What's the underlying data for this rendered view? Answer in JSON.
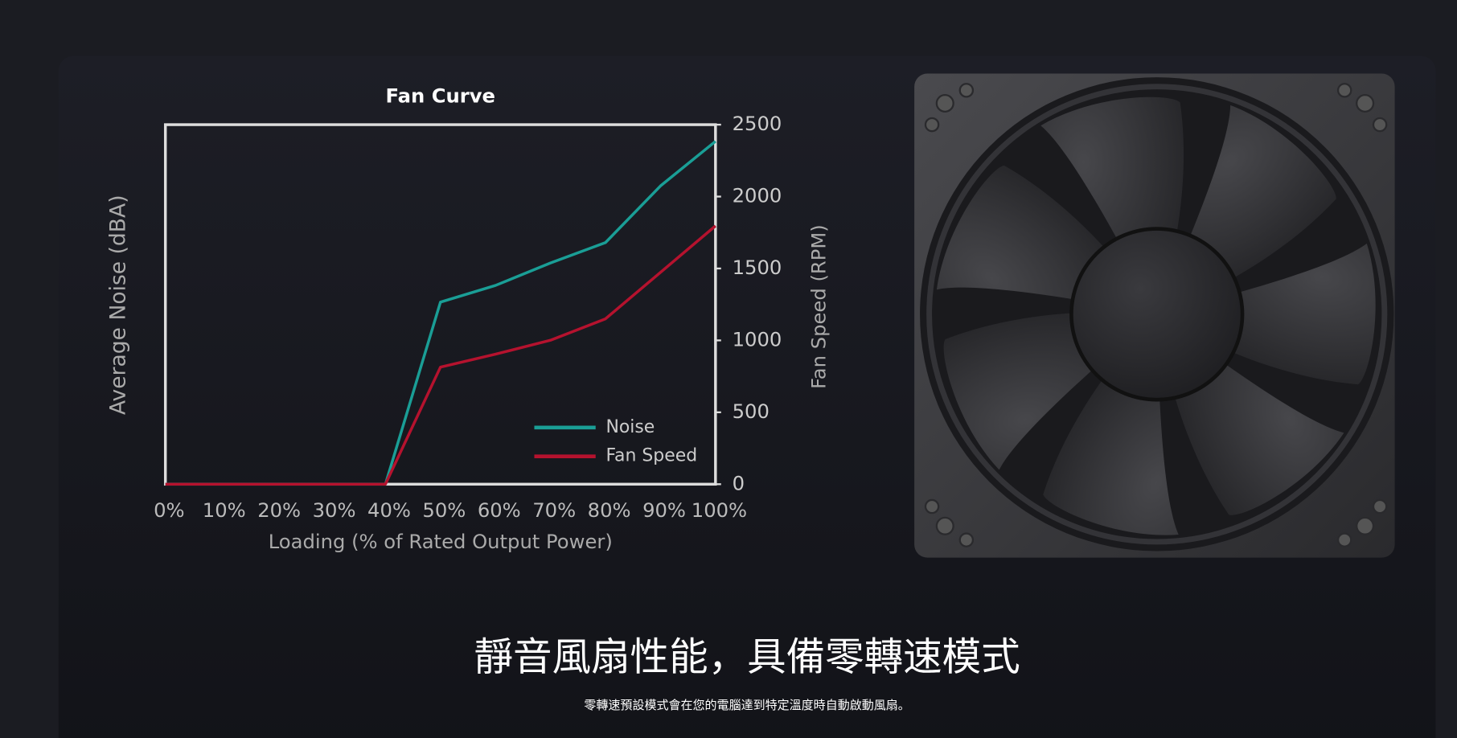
{
  "chart_data": {
    "type": "line",
    "title": "Fan Curve",
    "x_label": "Loading (% of Rated Output Power)",
    "y_label": "Average Noise (dBA)",
    "y2_label": "Fan Speed (RPM)",
    "x": [
      0,
      10,
      20,
      30,
      40,
      50,
      60,
      70,
      80,
      90,
      100
    ],
    "xlim": [
      0,
      100
    ],
    "xticks": [
      {
        "value": 0,
        "label": "0%"
      },
      {
        "value": 10,
        "label": "10%"
      },
      {
        "value": 20,
        "label": "20%"
      },
      {
        "value": 30,
        "label": "30%"
      },
      {
        "value": 40,
        "label": "40%"
      },
      {
        "value": 50,
        "label": "50%"
      },
      {
        "value": 60,
        "label": "60%"
      },
      {
        "value": 70,
        "label": "70%"
      },
      {
        "value": 80,
        "label": "80%"
      },
      {
        "value": 90,
        "label": "90%"
      },
      {
        "value": 100,
        "label": "100%"
      }
    ],
    "ylim": [
      0,
      2500
    ],
    "y2lim": [
      0,
      2500
    ],
    "y2ticks": [
      0,
      500,
      1000,
      1500,
      2000,
      2500
    ],
    "legend": "lower right",
    "series": [
      {
        "name": "Noise",
        "color": "#1a9e96",
        "values": [
          0,
          0,
          0,
          0,
          0,
          1266,
          1382,
          1538,
          1680,
          2074,
          2384
        ]
      },
      {
        "name": "Fan Speed",
        "color": "#b5122e",
        "axis": "y2",
        "values": [
          0,
          0,
          0,
          0,
          0,
          814,
          904,
          1001,
          1150,
          1473,
          1796
        ]
      }
    ]
  },
  "heading": "靜音風扇性能，具備零轉速模式",
  "description": "零轉速預設模式會在您的電腦達到特定溫度時自動啟動風扇。"
}
